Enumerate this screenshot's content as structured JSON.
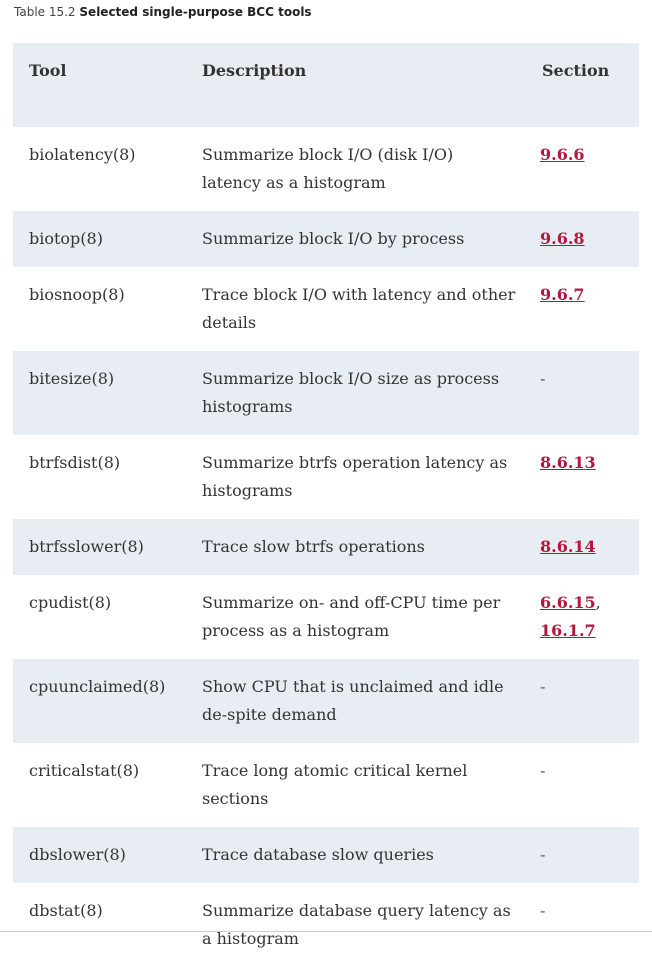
{
  "caption": {
    "number": "Table 15.2",
    "title": "Selected single-purpose BCC tools"
  },
  "table": {
    "headers": {
      "tool": "Tool",
      "description": "Description",
      "section": "Section"
    },
    "rows": [
      {
        "tool": "biolatency(8)",
        "description": "Summarize block I/O (disk I/O) latency as a histogram",
        "refs": [
          "9.6.6"
        ]
      },
      {
        "tool": "biotop(8)",
        "description": "Summarize block I/O by process",
        "refs": [
          "9.6.8"
        ]
      },
      {
        "tool": "biosnoop(8)",
        "description": "Trace block I/O with latency and other details",
        "refs": [
          "9.6.7"
        ]
      },
      {
        "tool": "bitesize(8)",
        "description": "Summarize block I/O size as process histograms",
        "refs": [],
        "none": "-"
      },
      {
        "tool": "btrfsdist(8)",
        "description": "Summarize btrfs operation latency as histograms",
        "refs": [
          "8.6.13"
        ]
      },
      {
        "tool": "btrfsslower(8)",
        "description": "Trace slow btrfs operations",
        "refs": [
          "8.6.14"
        ]
      },
      {
        "tool": "cpudist(8)",
        "description": "Summarize on- and off-CPU time per process as a histogram",
        "refs": [
          "6.6.15",
          "16.1.7"
        ]
      },
      {
        "tool": "cpuunclaimed(8)",
        "description": "Show CPU that is unclaimed and idle de-spite demand",
        "refs": [],
        "none": "-"
      },
      {
        "tool": "criticalstat(8)",
        "description": "Trace long atomic critical kernel sections",
        "refs": [],
        "none": "-"
      },
      {
        "tool": "dbslower(8)",
        "description": "Trace database slow queries",
        "refs": [],
        "none": "-"
      },
      {
        "tool": "dbstat(8)",
        "description": "Summarize database query latency as a histogram",
        "refs": [],
        "none": "-"
      }
    ]
  }
}
